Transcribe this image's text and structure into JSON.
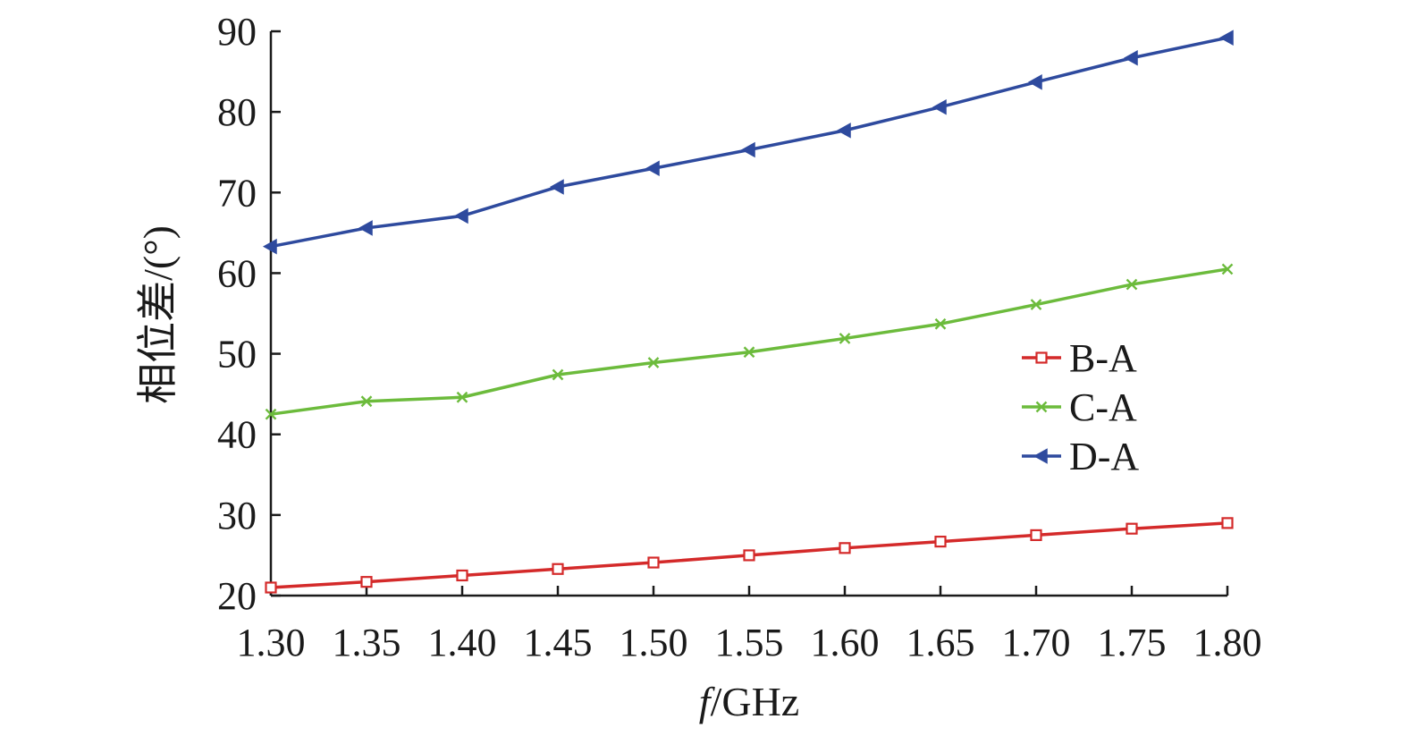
{
  "chart_data": {
    "type": "line",
    "xlabel_italic": "f",
    "xlabel_rest": "/GHz",
    "ylabel": "相位差/(°)",
    "xlim": [
      1.3,
      1.8
    ],
    "ylim": [
      20,
      90
    ],
    "x_ticks": [
      "1.30",
      "1.35",
      "1.40",
      "1.45",
      "1.50",
      "1.55",
      "1.60",
      "1.65",
      "1.70",
      "1.75",
      "1.80"
    ],
    "y_ticks": [
      "20",
      "30",
      "40",
      "50",
      "60",
      "70",
      "80",
      "90"
    ],
    "x": [
      1.3,
      1.35,
      1.4,
      1.45,
      1.5,
      1.55,
      1.6,
      1.65,
      1.7,
      1.75,
      1.8
    ],
    "legend_position": "right-middle",
    "grid": false,
    "series": [
      {
        "name": "B-A",
        "color": "#d42a2a",
        "marker": "square",
        "values": [
          21.0,
          21.7,
          22.5,
          23.3,
          24.1,
          25.0,
          25.9,
          26.7,
          27.5,
          28.3,
          29.0
        ]
      },
      {
        "name": "C-A",
        "color": "#6cbb3c",
        "marker": "x",
        "values": [
          42.5,
          44.1,
          44.6,
          47.4,
          48.9,
          50.2,
          51.9,
          53.7,
          56.1,
          58.6,
          60.5
        ]
      },
      {
        "name": "D-A",
        "color": "#2e4a9e",
        "marker": "triangle-left",
        "values": [
          63.3,
          65.6,
          67.1,
          70.7,
          73.0,
          75.3,
          77.7,
          80.6,
          83.7,
          86.7,
          89.2
        ]
      }
    ]
  }
}
